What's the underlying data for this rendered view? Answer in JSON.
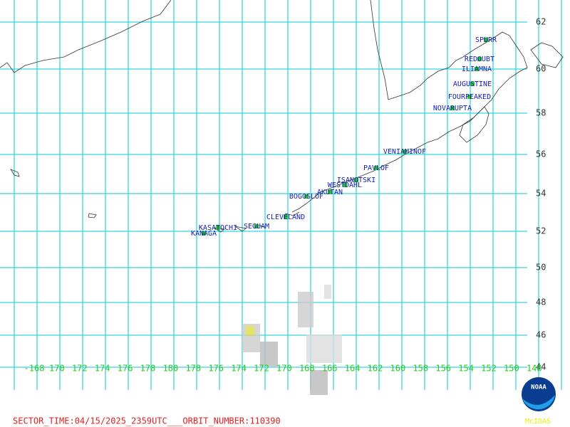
{
  "map": {
    "latitude_labels": [
      "62",
      "60",
      "58",
      "56",
      "54",
      "52",
      "50",
      "48",
      "46",
      "44"
    ],
    "longitude_labels": [
      "-168",
      "170",
      "172",
      "174",
      "176",
      "178",
      "180",
      "178",
      "176",
      "174",
      "172",
      "170",
      "168",
      "166",
      "164",
      "162",
      "160",
      "158",
      "156",
      "154",
      "152",
      "150",
      "148"
    ],
    "volcanoes": [
      {
        "label": "SPURR"
      },
      {
        "label": "REDOUBT"
      },
      {
        "label": "ILIAMNA"
      },
      {
        "label": "AUGUSTINE"
      },
      {
        "label": "FOURPEAKED"
      },
      {
        "label": "NOVARUPTA"
      },
      {
        "label": "VENIAMINOF"
      },
      {
        "label": "PAVLOF"
      },
      {
        "label": "ISANOTSKI"
      },
      {
        "label": "WESTDAHL"
      },
      {
        "label": "AKUTAN"
      },
      {
        "label": "BOGOSLOF"
      },
      {
        "label": "CLEVELAND"
      },
      {
        "label": "SEGUAM"
      },
      {
        "label": "KASATOCHI"
      },
      {
        "label": "KANAGA"
      }
    ],
    "footer": "SECTOR_TIME:04/15/2025_2359UTC___ORBIT_NUMBER:110390",
    "logo": {
      "text": "NOAA",
      "caption": "McIDAS"
    }
  }
}
